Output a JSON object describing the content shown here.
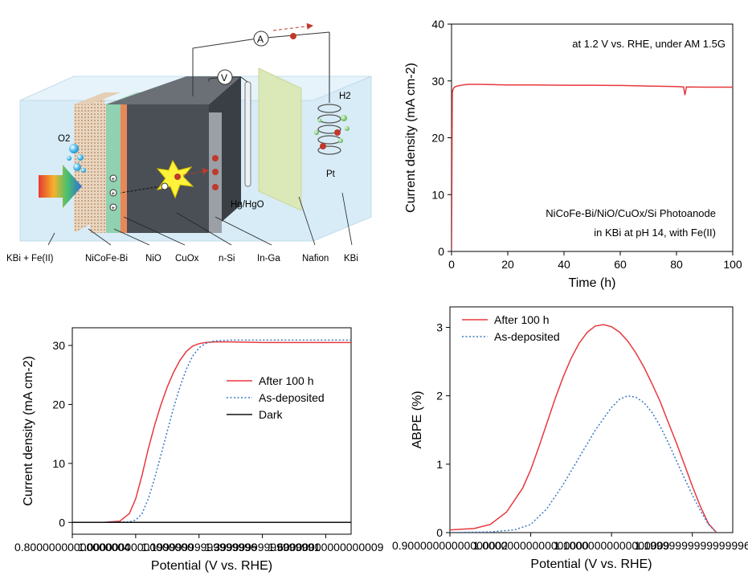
{
  "schematic": {
    "labels": {
      "kbi_fe": "KBi + Fe(II)",
      "nicofe": "NiCoFe-Bi",
      "nio": "NiO",
      "cuox": "CuOx",
      "nsi": "n-Si",
      "inga": "In-Ga",
      "nafion": "Nafion",
      "kbi": "KBi",
      "hg": "Hg/HgO",
      "pt": "Pt",
      "o2": "O2",
      "h2": "H2",
      "ammeter": "A",
      "voltmeter": "V"
    },
    "colors": {
      "electrolyte": "#d8ecf7",
      "nicofe": "#d9c2a8",
      "nio": "#8fd1b0",
      "cuox": "#e8885a",
      "si": "#4a4f55",
      "inga": "#9aa0a6",
      "nafion": "#dbe8b8"
    }
  },
  "chart_data": [
    {
      "id": "stability",
      "type": "line",
      "xlabel": "Time (h)",
      "ylabel": "Current density (mA cm-2)",
      "xlim": [
        0,
        100
      ],
      "ylim": [
        0,
        40
      ],
      "xticks": [
        0,
        20,
        40,
        60,
        80,
        100
      ],
      "yticks": [
        0,
        10,
        20,
        30,
        40
      ],
      "annotations": [
        "at 1.2 V vs. RHE, under AM 1.5G",
        "NiCoFe-Bi/NiO/CuOx/Si Photoanode",
        "in KBi at pH 14, with Fe(II)"
      ],
      "series": [
        {
          "name": "",
          "color": "#e8383d",
          "x": [
            0,
            0.3,
            0.6,
            1,
            2,
            4,
            6,
            10,
            20,
            30,
            40,
            50,
            60,
            70,
            80,
            82.5,
            83,
            83.5,
            90,
            100
          ],
          "y": [
            0,
            28,
            28.6,
            28.9,
            29.1,
            29.3,
            29.4,
            29.4,
            29.3,
            29.3,
            29.25,
            29.25,
            29.2,
            29.1,
            29.0,
            28.95,
            27.5,
            28.95,
            28.9,
            28.9
          ]
        }
      ]
    },
    {
      "id": "lsv",
      "type": "line",
      "xlabel": "Potential (V vs. RHE)",
      "ylabel": "Current density (mA cm-2)",
      "xlim": [
        0.8,
        1.68
      ],
      "ylim": [
        -2,
        33
      ],
      "xticks": [
        0.8,
        1.0,
        1.2,
        1.4,
        1.6
      ],
      "yticks": [
        0,
        10,
        20,
        30
      ],
      "legend": "center-right",
      "series": [
        {
          "name": "After 100 h",
          "color": "#e8383d",
          "dash": false,
          "x": [
            0.8,
            0.9,
            0.95,
            0.98,
            1.0,
            1.02,
            1.04,
            1.06,
            1.08,
            1.1,
            1.12,
            1.14,
            1.16,
            1.18,
            1.2,
            1.22,
            1.25,
            1.3,
            1.4,
            1.5,
            1.6,
            1.68
          ],
          "y": [
            0,
            0,
            0.2,
            1.5,
            4,
            8,
            12.5,
            16.5,
            20,
            23,
            25.5,
            27.5,
            29,
            29.9,
            30.3,
            30.5,
            30.6,
            30.6,
            30.5,
            30.5,
            30.5,
            30.5
          ]
        },
        {
          "name": "As-deposited",
          "color": "#3a78c2",
          "dash": true,
          "x": [
            0.8,
            0.9,
            0.98,
            1.0,
            1.02,
            1.04,
            1.06,
            1.08,
            1.1,
            1.12,
            1.14,
            1.16,
            1.18,
            1.2,
            1.22,
            1.24,
            1.26,
            1.3,
            1.4,
            1.5,
            1.6,
            1.68
          ],
          "y": [
            0,
            0,
            0.1,
            0.4,
            1.5,
            4,
            7.5,
            11.5,
            15.5,
            19.5,
            23,
            26,
            28.2,
            29.6,
            30.3,
            30.7,
            30.8,
            30.9,
            30.9,
            30.9,
            30.9,
            30.9
          ]
        },
        {
          "name": "Dark",
          "color": "#111111",
          "dash": false,
          "x": [
            0.8,
            1.68
          ],
          "y": [
            0,
            0
          ]
        }
      ]
    },
    {
      "id": "abpe",
      "type": "line",
      "xlabel": "Potential (V vs. RHE)",
      "ylabel": "ABPE (%)",
      "xlim": [
        0.9,
        1.25
      ],
      "ylim": [
        0,
        3.3
      ],
      "xticks": [
        0.9,
        1.0,
        1.1,
        1.2
      ],
      "yticks": [
        0,
        1,
        2,
        3
      ],
      "legend": "top-left",
      "series": [
        {
          "name": "After 100 h",
          "color": "#e8383d",
          "dash": false,
          "x": [
            0.9,
            0.93,
            0.95,
            0.97,
            0.99,
            1.0,
            1.01,
            1.02,
            1.03,
            1.04,
            1.05,
            1.06,
            1.07,
            1.08,
            1.09,
            1.1,
            1.11,
            1.12,
            1.13,
            1.14,
            1.15,
            1.16,
            1.17,
            1.18,
            1.19,
            1.2,
            1.21,
            1.22,
            1.23
          ],
          "y": [
            0.04,
            0.06,
            0.12,
            0.3,
            0.65,
            0.92,
            1.25,
            1.6,
            1.95,
            2.27,
            2.55,
            2.77,
            2.93,
            3.02,
            3.04,
            3.01,
            2.93,
            2.8,
            2.63,
            2.42,
            2.18,
            1.92,
            1.62,
            1.32,
            1.0,
            0.68,
            0.38,
            0.13,
            0.0
          ]
        },
        {
          "name": "As-deposited",
          "color": "#3a78c2",
          "dash": true,
          "x": [
            0.9,
            0.95,
            0.98,
            1.0,
            1.02,
            1.04,
            1.06,
            1.08,
            1.1,
            1.11,
            1.12,
            1.13,
            1.14,
            1.15,
            1.16,
            1.17,
            1.18,
            1.19,
            1.2,
            1.21,
            1.22,
            1.23
          ],
          "y": [
            0.0,
            0.01,
            0.04,
            0.12,
            0.35,
            0.7,
            1.1,
            1.5,
            1.83,
            1.95,
            2.0,
            1.98,
            1.9,
            1.76,
            1.56,
            1.32,
            1.06,
            0.8,
            0.55,
            0.32,
            0.12,
            0.0
          ]
        }
      ]
    }
  ]
}
